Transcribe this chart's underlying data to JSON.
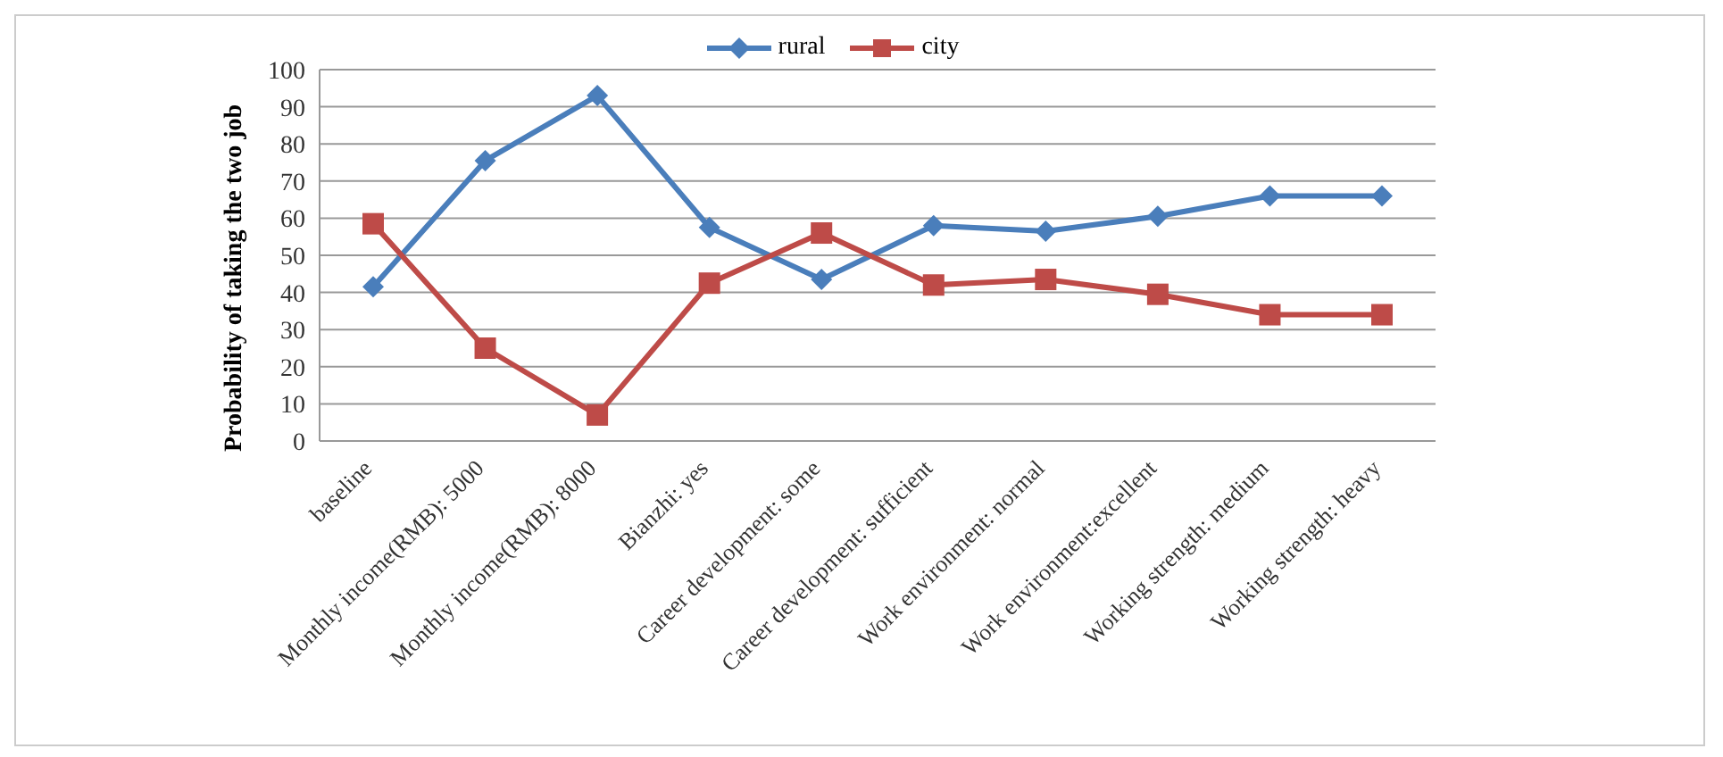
{
  "chart_data": {
    "type": "line",
    "ylabel": "Probability of taking the two job",
    "categories": [
      "baseline",
      "Monthly income(RMB): 5000",
      "Monthly income(RMB): 8000",
      "Bianzhi: yes",
      "Career development: some",
      "Career development: sufficient",
      "Work environment: normal",
      "Work environment:excellent",
      "Working strength: medium",
      "Working strength: heavy"
    ],
    "series": [
      {
        "name": "rural",
        "color": "#4a7ebb",
        "marker": "diamond",
        "values": [
          41.5,
          75.5,
          93,
          57.5,
          43.5,
          58,
          56.5,
          60.5,
          66,
          66
        ]
      },
      {
        "name": "city",
        "color": "#be4b48",
        "marker": "square",
        "values": [
          58.5,
          25,
          7,
          42.5,
          56,
          42,
          43.5,
          39.5,
          34,
          34
        ]
      }
    ],
    "ylim": [
      0,
      100
    ],
    "yticks": [
      0,
      10,
      20,
      30,
      40,
      50,
      60,
      70,
      80,
      90,
      100
    ],
    "grid": "y",
    "legend": "top"
  }
}
